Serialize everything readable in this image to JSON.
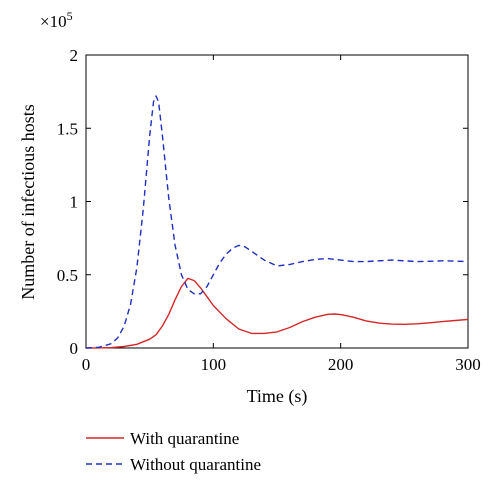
{
  "chart_data": {
    "type": "line",
    "title": "",
    "xlabel": "Time (s)",
    "ylabel": "Number of infectious hosts",
    "y_multiplier": "×10",
    "y_multiplier_exp": "5",
    "xlim": [
      0,
      300
    ],
    "ylim": [
      0,
      2
    ],
    "xticks": [
      0,
      100,
      200,
      300
    ],
    "xtick_labels": [
      "0",
      "100",
      "200",
      "300"
    ],
    "yticks": [
      0,
      0.5,
      1,
      1.5,
      2
    ],
    "ytick_labels": [
      "0",
      "0.5",
      "1",
      "1.5",
      "2"
    ],
    "grid": false,
    "legend_position": "bottom",
    "series": [
      {
        "name": "With quarantine",
        "color": "#d62728",
        "dash": "solid",
        "x": [
          0,
          10,
          20,
          30,
          40,
          50,
          55,
          60,
          65,
          70,
          75,
          80,
          85,
          90,
          95,
          100,
          110,
          120,
          130,
          140,
          150,
          160,
          170,
          180,
          190,
          195,
          200,
          210,
          220,
          230,
          240,
          250,
          260,
          270,
          280,
          290,
          300
        ],
        "y": [
          0,
          0.001,
          0.003,
          0.01,
          0.025,
          0.06,
          0.09,
          0.15,
          0.23,
          0.33,
          0.42,
          0.475,
          0.46,
          0.41,
          0.35,
          0.29,
          0.2,
          0.13,
          0.1,
          0.1,
          0.11,
          0.14,
          0.18,
          0.21,
          0.23,
          0.232,
          0.228,
          0.21,
          0.185,
          0.17,
          0.163,
          0.162,
          0.165,
          0.172,
          0.18,
          0.188,
          0.195
        ]
      },
      {
        "name": "Without quarantine",
        "color": "#1f2fbf",
        "dash": "dashed",
        "x": [
          0,
          10,
          20,
          25,
          30,
          35,
          40,
          45,
          50,
          53,
          55,
          57,
          60,
          65,
          70,
          75,
          80,
          85,
          90,
          95,
          100,
          105,
          110,
          115,
          120,
          125,
          130,
          140,
          150,
          160,
          170,
          180,
          190,
          200,
          210,
          220,
          230,
          240,
          250,
          260,
          270,
          280,
          290,
          300
        ],
        "y": [
          0,
          0.005,
          0.03,
          0.07,
          0.15,
          0.3,
          0.55,
          0.95,
          1.45,
          1.68,
          1.72,
          1.68,
          1.45,
          1.02,
          0.7,
          0.5,
          0.4,
          0.37,
          0.37,
          0.42,
          0.5,
          0.58,
          0.64,
          0.68,
          0.7,
          0.69,
          0.66,
          0.6,
          0.56,
          0.57,
          0.59,
          0.605,
          0.61,
          0.6,
          0.59,
          0.59,
          0.595,
          0.6,
          0.595,
          0.59,
          0.592,
          0.595,
          0.593,
          0.59
        ]
      }
    ]
  }
}
